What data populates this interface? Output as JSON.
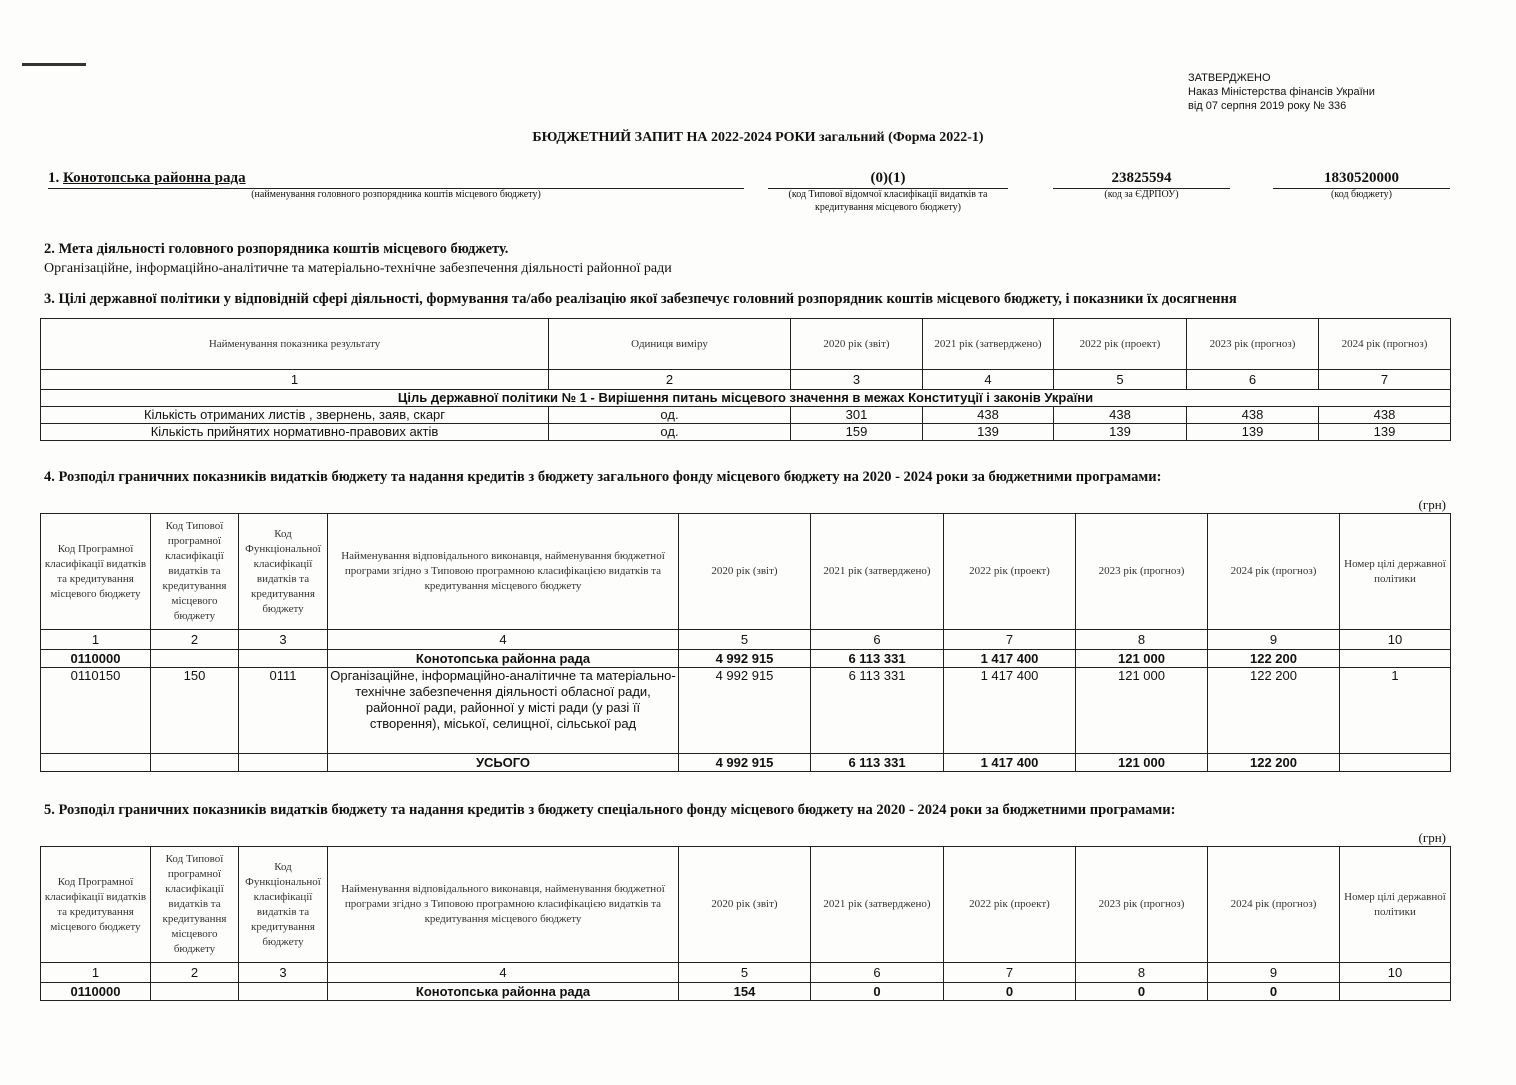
{
  "approval": {
    "line1": "ЗАТВЕРДЖЕНО",
    "line2": "Наказ Міністерства фінансів України",
    "line3": "від 07 серпня 2019 року № 336"
  },
  "title": "БЮДЖЕТНИЙ ЗАПИТ НА 2022-2024  РОКИ загальний (Форма 2022-1)",
  "section1": {
    "number": "1.",
    "name": "Конотопська районна рада",
    "name_caption": "(найменування головного розпорядника коштів місцевого бюджету)",
    "code": "(0)(1)",
    "code_caption": "(код Типової відомчої класифікації видатків та кредитування місцевого бюджету)",
    "edrpou": "23825594",
    "edrpou_caption": "(код за ЄДРПОУ)",
    "budget_code": "1830520000",
    "budget_code_caption": "(код бюджету)"
  },
  "section2": {
    "heading": "2. Мета діяльності головного розпорядника коштів місцевого бюджету.",
    "text": "Організаційне, інформаційно-аналітичне та матеріально-технічне забезпечення діяльності районної ради"
  },
  "section3": {
    "heading": "3. Цілі державної політики у відповідній сфері діяльності, формування та/або реалізацію якої забезпечує головний розпорядник коштів місцевого бюджету, і показники їх досягнення",
    "headers": [
      "Найменування показника результату",
      "Одиниця виміру",
      "2020 рік (звіт)",
      "2021 рік (затверджено)",
      "2022 рік (проект)",
      "2023 рік (прогноз)",
      "2024 рік (прогноз)"
    ],
    "numbers": [
      "1",
      "2",
      "3",
      "4",
      "5",
      "6",
      "7"
    ],
    "goal": "Ціль державної політики № 1 - Вирішення питань місцевого значення в межах Конституції  і законів України",
    "rows": [
      [
        "Кількість отриманих листів , звернень, заяв, скарг",
        "од.",
        "301",
        "438",
        "438",
        "438",
        "438"
      ],
      [
        "Кількість прийнятих нормативно-правових актів",
        "од.",
        "159",
        "139",
        "139",
        "139",
        "139"
      ]
    ]
  },
  "section4": {
    "heading": "4. Розподіл граничних показників видатків бюджету та надання кредитів з бюджету загального фонду місцевого бюджету на 2020 - 2024 роки за бюджетними програмами:",
    "unit": "(грн)",
    "headers": [
      "Код Програмної класифікації видатків та кредитування місцевого бюджету",
      "Код Типової програмної класифікації видатків та кредитування місцевого бюджету",
      "Код Функціональної класифікації видатків та кредитування бюджету",
      "Найменування відповідального виконавця, найменування бюджетної програми згідно з Типовою програмною класифікацією видатків та кредитування місцевого бюджету",
      "2020 рік (звіт)",
      "2021 рік (затверджено)",
      "2022 рік (проект)",
      "2023 рік (прогноз)",
      "2024 рік (прогноз)",
      "Номер цілі державної політики"
    ],
    "numbers": [
      "1",
      "2",
      "3",
      "4",
      "5",
      "6",
      "7",
      "8",
      "9",
      "10"
    ],
    "rows": [
      [
        "0110000",
        "",
        "",
        "Конотопська районна рада",
        "4 992 915",
        "6 113 331",
        "1 417 400",
        "121 000",
        "122 200",
        ""
      ],
      [
        "0110150",
        "150",
        "0111",
        "Організаційне, інформаційно-аналітичне та матеріально-технічне забезпечення діяльності обласної ради, районної ради, районної у місті ради (у разі її створення), міської, селищної, сільської рад",
        "4 992 915",
        "6 113 331",
        "1 417 400",
        "121 000",
        "122 200",
        "1"
      ]
    ],
    "total": [
      "",
      "",
      "",
      "УСЬОГО",
      "4 992 915",
      "6 113 331",
      "1 417 400",
      "121 000",
      "122 200",
      ""
    ]
  },
  "section5": {
    "heading": "5. Розподіл граничних показників видатків бюджету та надання кредитів з бюджету спеціального фонду місцевого бюджету на 2020 - 2024 роки за бюджетними програмами:",
    "unit": "(грн)",
    "headers": [
      "Код Програмної класифікації видатків та кредитування місцевого бюджету",
      "Код Типової програмної класифікації видатків та кредитування місцевого бюджету",
      "Код Функціональної класифікації видатків та кредитування бюджету",
      "Найменування відповідального виконавця, найменування бюджетної програми згідно з Типовою програмною класифікацією видатків та кредитування місцевого бюджету",
      "2020 рік (звіт)",
      "2021 рік (затверджено)",
      "2022 рік (проект)",
      "2023 рік (прогноз)",
      "2024 рік (прогноз)",
      "Номер цілі державної політики"
    ],
    "numbers": [
      "1",
      "2",
      "3",
      "4",
      "5",
      "6",
      "7",
      "8",
      "9",
      "10"
    ],
    "rows": [
      [
        "0110000",
        "",
        "",
        "Конотопська районна рада",
        "154",
        "0",
        "0",
        "0",
        "0",
        ""
      ]
    ]
  }
}
